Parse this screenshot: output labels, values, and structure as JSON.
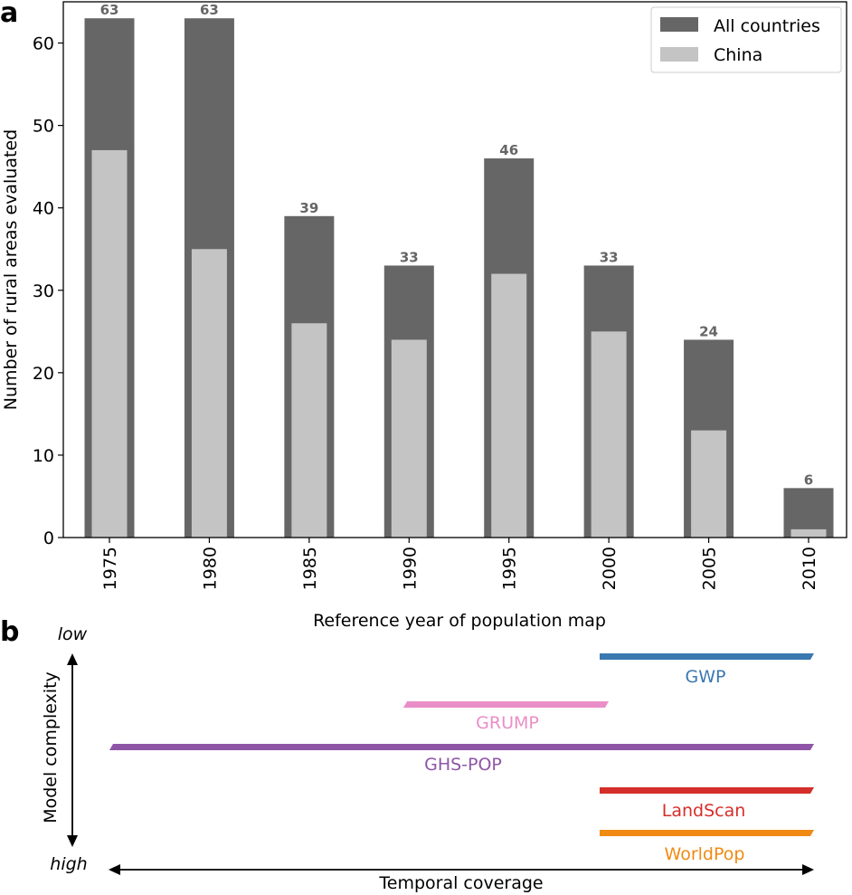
{
  "panel_a_label": "a",
  "panel_b_label": "b",
  "chart_data": {
    "type": "bar",
    "categories": [
      "1975",
      "1980",
      "1985",
      "1990",
      "1995",
      "2000",
      "2005",
      "2010"
    ],
    "series": [
      {
        "name": "All countries",
        "values": [
          63,
          63,
          39,
          33,
          46,
          33,
          24,
          6
        ],
        "color": "#666666"
      },
      {
        "name": "China",
        "values": [
          47,
          35,
          26,
          24,
          32,
          25,
          13,
          1
        ],
        "color": "#c4c4c4"
      }
    ],
    "data_labels": [
      "63",
      "63",
      "39",
      "33",
      "46",
      "33",
      "24",
      "6"
    ],
    "title": "",
    "xlabel": "Reference year of population map",
    "ylabel": "Number of rural areas evaluated",
    "ylim": [
      0,
      65
    ],
    "yticks": [
      "0",
      "10",
      "20",
      "30",
      "40",
      "50",
      "60"
    ],
    "legend_position": "top-right"
  },
  "diagram": {
    "y_axis_label": "Model complexity",
    "y_low": "low",
    "y_high": "high",
    "x_axis_label": "Temporal coverage",
    "products": [
      {
        "name": "GWP",
        "color": "#3a78b0"
      },
      {
        "name": "GRUMP",
        "color": "#ea8ec8"
      },
      {
        "name": "GHS-POP",
        "color": "#8e55a6"
      },
      {
        "name": "LandScan",
        "color": "#d42f2a"
      },
      {
        "name": "WorldPop",
        "color": "#f08a12"
      }
    ]
  }
}
